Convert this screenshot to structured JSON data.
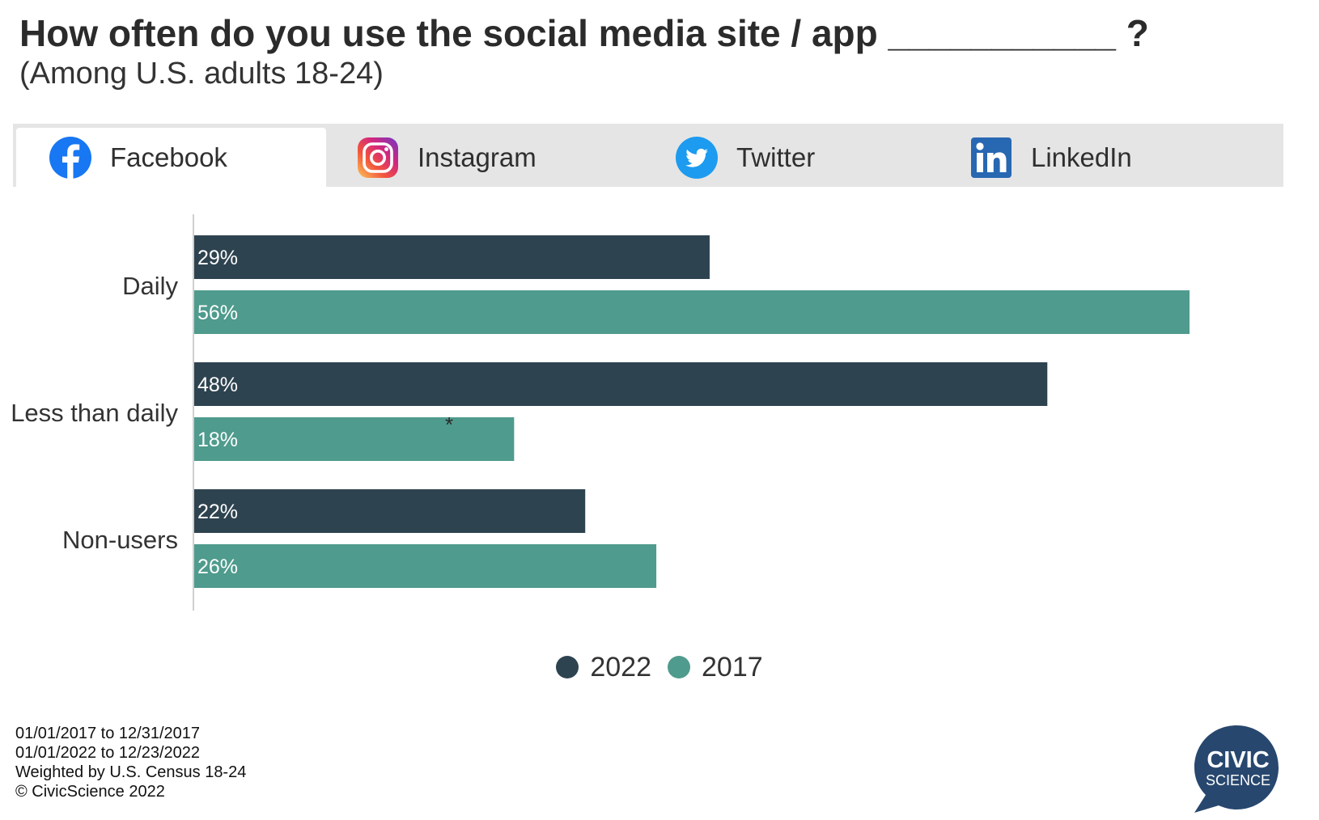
{
  "header": {
    "title": "How often do you use the social media site / app ___________ ?",
    "subtitle": "(Among U.S. adults 18-24)"
  },
  "tabs": [
    {
      "label": "Facebook",
      "icon": "facebook-icon",
      "active": true
    },
    {
      "label": "Instagram",
      "icon": "instagram-icon",
      "active": false
    },
    {
      "label": "Twitter",
      "icon": "twitter-icon",
      "active": false
    },
    {
      "label": "LinkedIn",
      "icon": "linkedin-icon",
      "active": false
    }
  ],
  "chart_data": {
    "type": "bar",
    "orientation": "horizontal",
    "categories": [
      "Daily",
      "Less than daily",
      "Non-users"
    ],
    "series": [
      {
        "name": "2022",
        "values": [
          29,
          48,
          22
        ],
        "labels": [
          "29%",
          "48%",
          "22%"
        ],
        "color": "#2e4350"
      },
      {
        "name": "2017",
        "values": [
          56,
          18,
          26
        ],
        "labels": [
          "56%",
          "18%",
          "26%"
        ],
        "color": "#4f9b8d"
      }
    ],
    "annotations": [
      {
        "text": "*",
        "category": "Less than daily",
        "series": "2017"
      }
    ],
    "xlim": [
      0,
      56
    ],
    "legend_position": "bottom-center",
    "grid": false
  },
  "legend": [
    {
      "label": "2022",
      "color": "#2e4350"
    },
    {
      "label": "2017",
      "color": "#4f9b8d"
    }
  ],
  "footnotes": [
    "01/01/2017 to 12/31/2017",
    "01/01/2022 to 12/23/2022",
    "Weighted by U.S. Census 18-24",
    "© CivicScience 2022"
  ],
  "logo": {
    "line1": "CIVIC",
    "line2": "SCIENCE",
    "color": "#27476e"
  }
}
